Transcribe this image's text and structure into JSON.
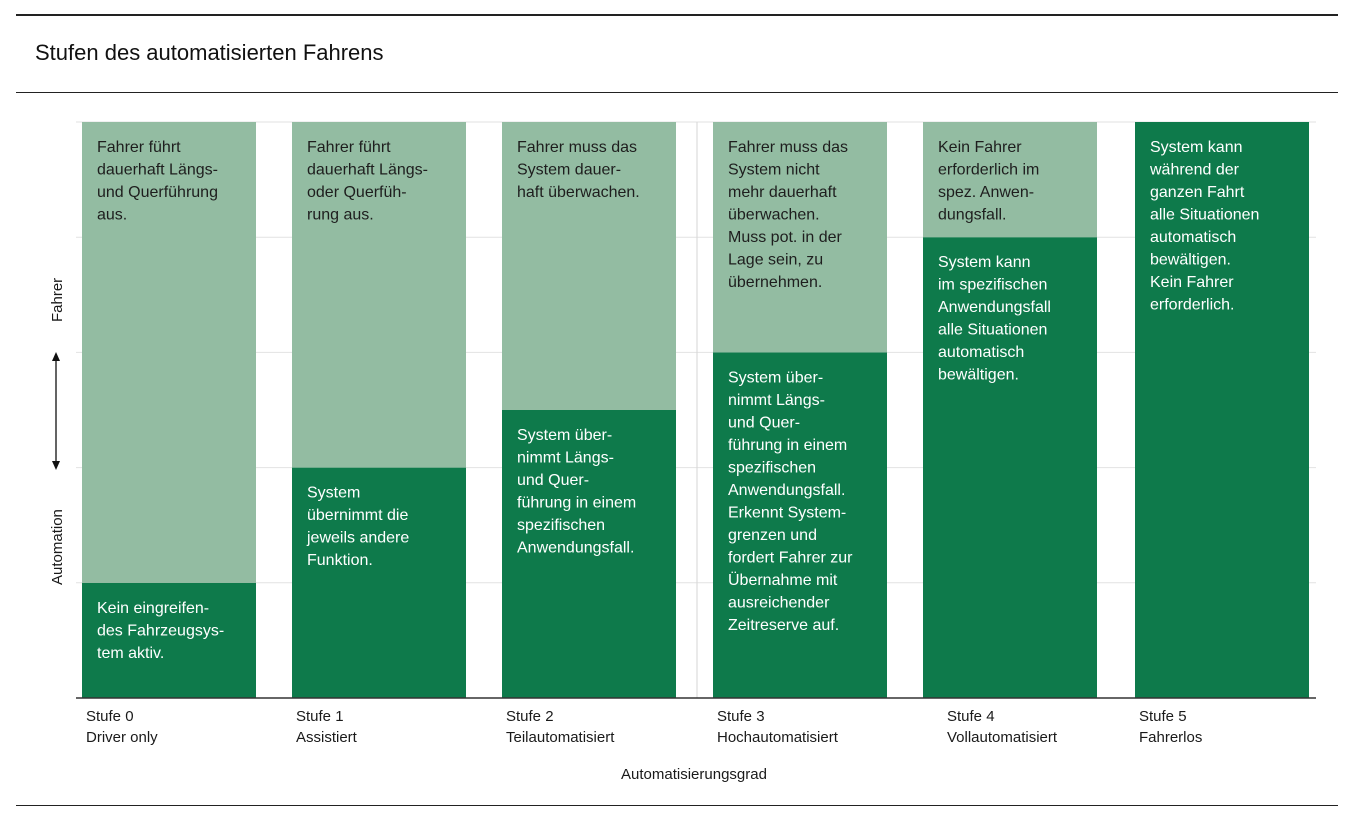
{
  "chart_data": {
    "type": "bar",
    "stacked": true,
    "title": "Stufen des automatisierten Fahrens",
    "xlabel": "Automatisierungsgrad",
    "ylabel_top": "Fahrer",
    "ylabel_bottom": "Automation",
    "ylim": [
      0,
      5
    ],
    "grid": true,
    "colors": {
      "fahrer": "#93bca2",
      "system": "#0e7a4b"
    },
    "categories": [
      {
        "stufe": "Stufe 0",
        "name": "Driver only"
      },
      {
        "stufe": "Stufe 1",
        "name": "Assistiert"
      },
      {
        "stufe": "Stufe 2",
        "name": "Teilautomatisiert"
      },
      {
        "stufe": "Stufe 3",
        "name": "Hochautomatisiert"
      },
      {
        "stufe": "Stufe 4",
        "name": "Vollautomatisiert"
      },
      {
        "stufe": "Stufe 5",
        "name": "Fahrerlos"
      }
    ],
    "series": [
      {
        "values": [
          1,
          2,
          2.5,
          3,
          4,
          5
        ],
        "texts": [
          "Kein eingreifen-\ndes Fahrzeugsys-\ntem aktiv.",
          "System\nübernimmt die\njeweils andere\nFunktion.",
          "System über-\nnimmt Längs-\nund Quer-\nführung in einem\nspezifischen\nAnwendungsfall.",
          "System über-\nnimmt Längs-\nund Quer-\nführung in einem\nspezifischen\nAnwendungsfall.\nErkennt System-\ngrenzen und\nfordert Fahrer zur\nÜbernahme mit\nausreichender\nZeitreserve  auf.",
          "System kann\nim spezifischen\nAnwendungsfall\nalle Situationen\nautomatisch\nbewältigen.",
          "System kann\nwährend der\nganzen Fahrt\nalle Situationen\nautomatisch\nbewältigen.\nKein Fahrer\nerforderlich."
        ]
      },
      {
        "values": [
          4,
          3,
          2.5,
          2,
          1,
          0
        ],
        "texts": [
          "Fahrer führt\ndauerhaft Längs-\nund Querführung\naus.",
          "Fahrer führt\ndauerhaft Längs-\noder Querfüh-\nrung aus.",
          "Fahrer muss das\nSystem dauer-\nhaft überwachen.",
          "Fahrer muss das\nSystem nicht\nmehr dauerhaft\nüberwachen.\nMuss pot. in der\nLage sein, zu\nübernehmen.",
          "Kein Fahrer\nerforderlich  im\nspez. Anwen-\ndungsfall.",
          ""
        ]
      }
    ]
  }
}
